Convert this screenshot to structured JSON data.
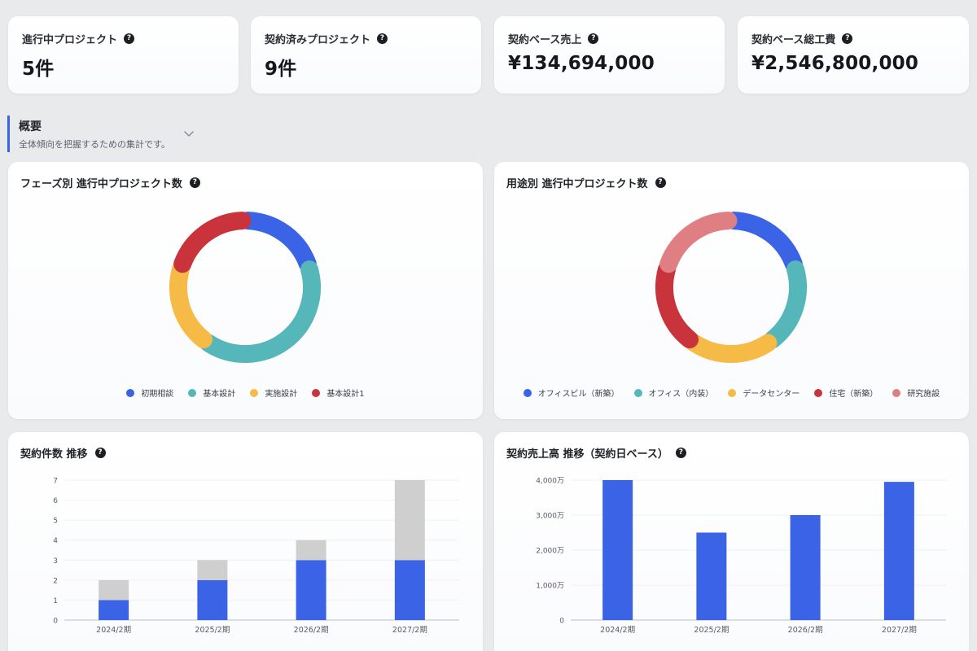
{
  "kpis": [
    {
      "label": "進行中プロジェクト",
      "value": "5件"
    },
    {
      "label": "契約済みプロジェクト",
      "value": "9件"
    },
    {
      "label": "契約ベース売上",
      "value": "¥134,694,000"
    },
    {
      "label": "契約ベース総工費",
      "value": "¥2,546,800,000"
    }
  ],
  "section": {
    "title": "概要",
    "description": "全体傾向を把握するための集計です。"
  },
  "help_glyph": "?",
  "colors": {
    "blue": "#3b63e6",
    "teal": "#55b7ba",
    "yellow": "#f6bb46",
    "red": "#c9333c",
    "pink": "#e07f83",
    "gray": "#cfcfcf"
  },
  "chart_data": [
    {
      "type": "pie",
      "title": "フェーズ別 進行中プロジェクト数",
      "labels": [
        "初期相談",
        "基本設計",
        "実施設計",
        "基本設計1"
      ],
      "values": [
        1,
        2,
        1,
        1
      ],
      "colors": [
        "#3b63e6",
        "#55b7ba",
        "#f6bb46",
        "#c9333c"
      ],
      "legend": "bottom"
    },
    {
      "type": "pie",
      "title": "用途別 進行中プロジェクト数",
      "labels": [
        "オフィスビル（新築）",
        "オフィス（内装）",
        "データセンター",
        "住宅（新築）",
        "研究施設"
      ],
      "values": [
        1,
        1,
        1,
        1,
        1
      ],
      "colors": [
        "#3b63e6",
        "#55b7ba",
        "#f6bb46",
        "#c9333c",
        "#e07f83"
      ],
      "legend": "bottom"
    },
    {
      "type": "bar",
      "title": "契約件数 推移",
      "categories": [
        "2024/2期",
        "2025/2期",
        "2026/2期",
        "2027/2期"
      ],
      "series": [
        {
          "values": [
            1,
            2,
            3,
            3
          ],
          "color": "#3b63e6"
        },
        {
          "values": [
            1,
            1,
            1,
            4
          ],
          "color": "#cfcfcf"
        }
      ],
      "stacked": true,
      "ylim": [
        0,
        7
      ],
      "yticks": [
        "0",
        "1",
        "2",
        "3",
        "4",
        "5",
        "6",
        "7"
      ],
      "grid": true
    },
    {
      "type": "bar",
      "title": "契約売上高 推移（契約日ベース）",
      "categories": [
        "2024/2期",
        "2025/2期",
        "2026/2期",
        "2027/2期"
      ],
      "series": [
        {
          "values": [
            40000000,
            25000000,
            30000000,
            39500000
          ],
          "color": "#3b63e6"
        }
      ],
      "ylim": [
        0,
        40000000
      ],
      "yticks": [
        "0",
        "1,000万",
        "2,000万",
        "3,000万",
        "4,000万"
      ],
      "grid": true
    }
  ]
}
